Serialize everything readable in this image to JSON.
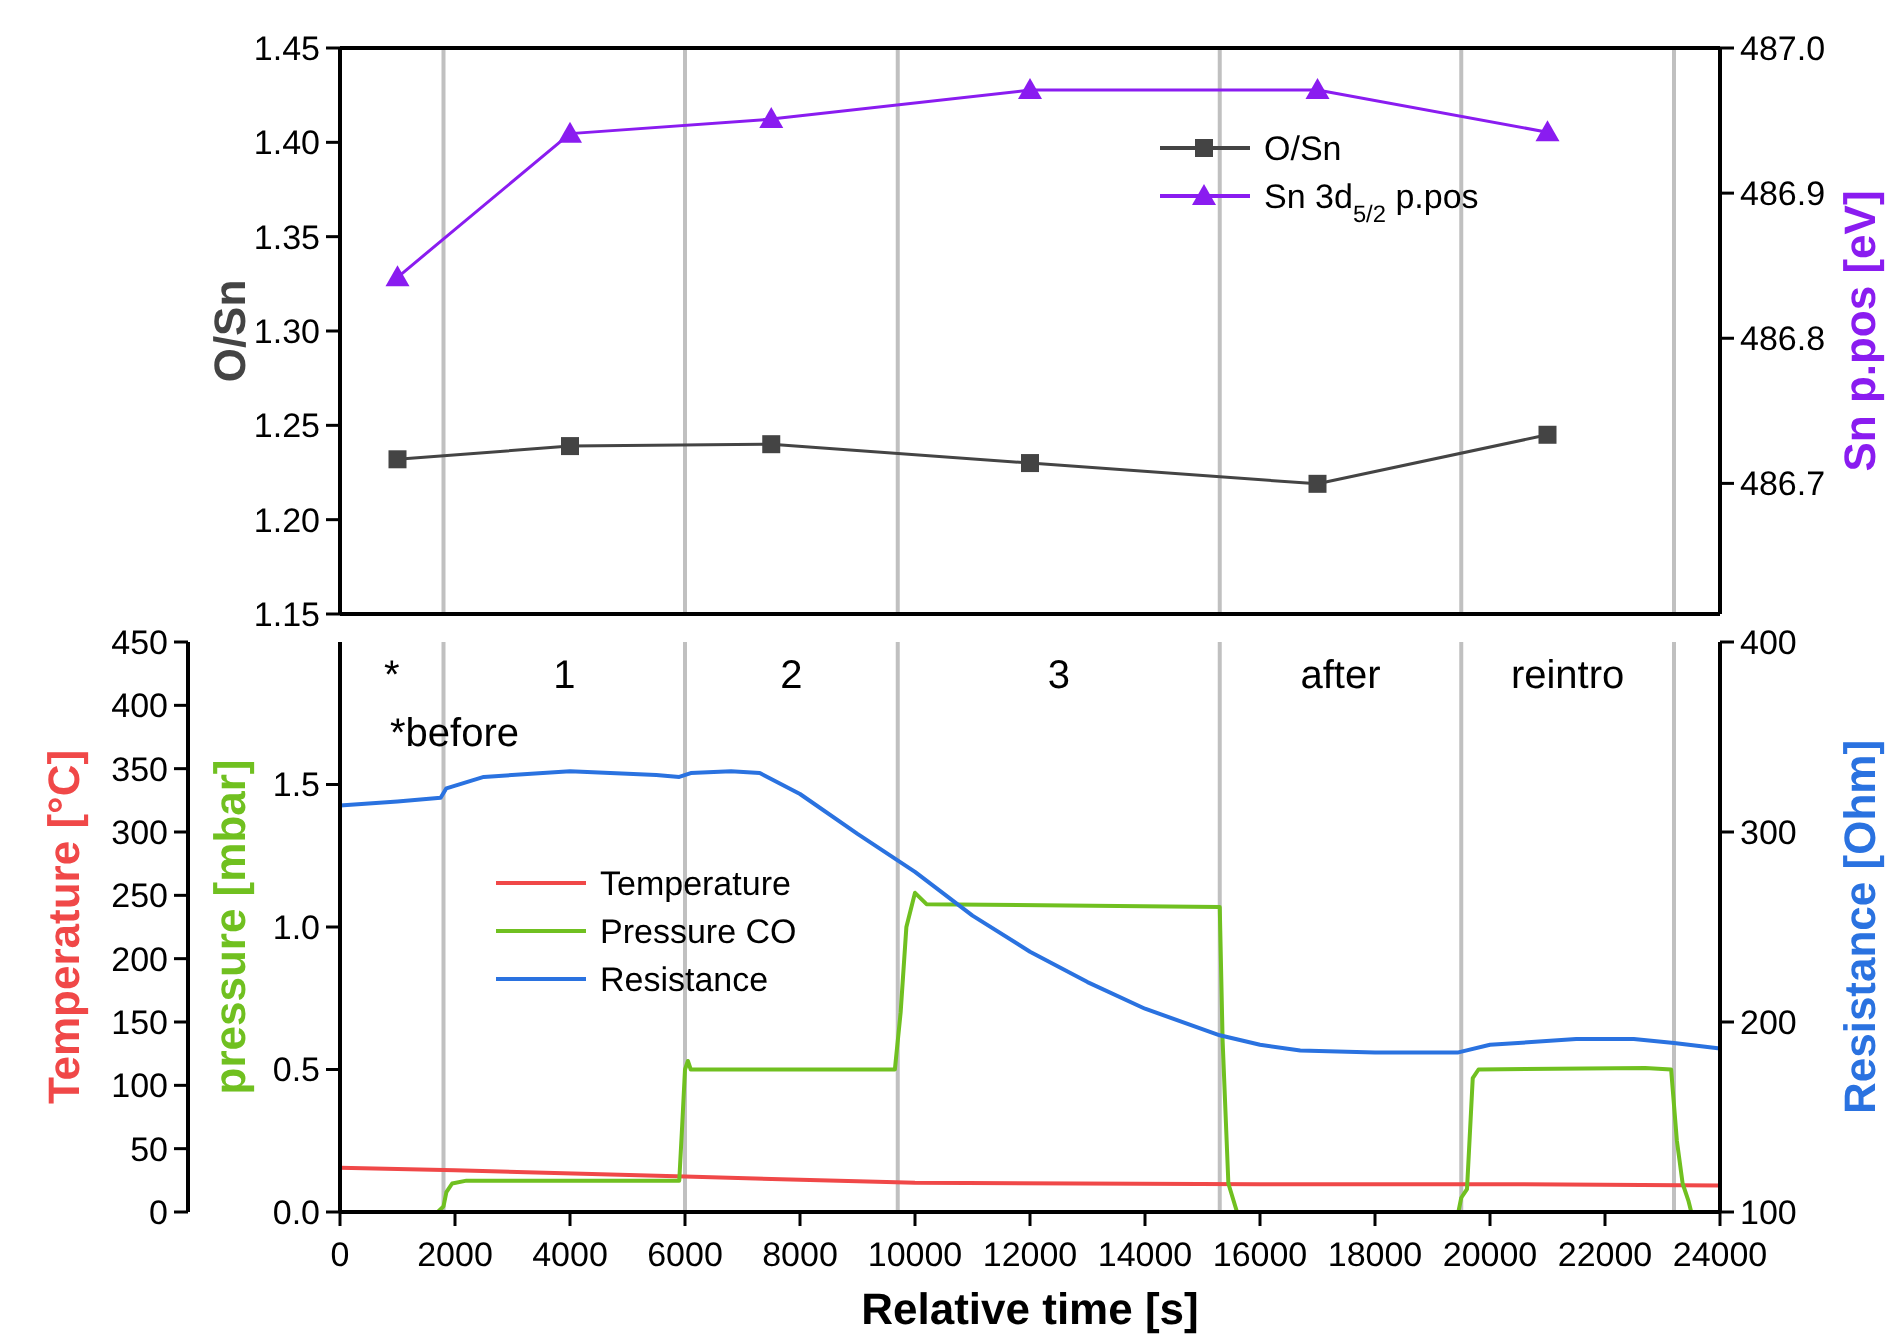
{
  "chart_data": [
    {
      "type": "line",
      "xlim": [
        0,
        24000
      ],
      "tick_labels": "y",
      "ylabel": "O/Sn",
      "y2label": "Sn p.pos [eV]",
      "ylim": [
        1.15,
        1.45
      ],
      "yticks": [
        {
          "value": 1.15,
          "label": "1.15"
        },
        {
          "value": 1.2,
          "label": "1.20"
        },
        {
          "value": 1.25,
          "label": "1.25"
        },
        {
          "value": 1.3,
          "label": "1.30"
        },
        {
          "value": 1.35,
          "label": "1.35"
        },
        {
          "value": 1.4,
          "label": "1.40"
        },
        {
          "value": 1.45,
          "label": "1.45"
        }
      ],
      "y2lim": [
        486.61,
        487.0
      ],
      "y2ticks": [
        486.7,
        486.8,
        486.9,
        {
          "value": 487.0,
          "label": "487.0"
        }
      ],
      "legend": "top right",
      "grid": false,
      "ref_lines": [
        {
          "axis": "x",
          "value": 1800,
          "color": "#c0c0c0"
        },
        {
          "axis": "x",
          "value": 6000,
          "color": "#c0c0c0"
        },
        {
          "axis": "x",
          "value": 9700,
          "color": "#c0c0c0"
        },
        {
          "axis": "x",
          "value": 15300,
          "color": "#c0c0c0"
        },
        {
          "axis": "x",
          "value": 19500,
          "color": "#c0c0c0"
        },
        {
          "axis": "x",
          "value": 23200,
          "color": "#c0c0c0"
        }
      ],
      "series": [
        {
          "name": "O/Sn",
          "color": "#444444",
          "marker": "square",
          "x": [
            1000,
            4000,
            7500,
            12000,
            17000,
            21000
          ],
          "values": [
            1.232,
            1.239,
            1.24,
            1.23,
            1.219,
            1.245
          ]
        },
        {
          "name": "Sn 3d$_{5/2}$ p.pos",
          "color": "#8a1cf0",
          "marker": "triangle",
          "axis": "y2",
          "x": [
            1000,
            4000,
            7500,
            12000,
            17000,
            21000
          ],
          "values": [
            486.842,
            486.941,
            486.951,
            486.971,
            486.971,
            486.942
          ]
        }
      ]
    },
    {
      "type": "line",
      "xlabel": "Relative time [s]",
      "xlim": [
        0,
        24000
      ],
      "xticks": [
        0,
        2000,
        4000,
        6000,
        8000,
        10000,
        12000,
        14000,
        16000,
        18000,
        20000,
        22000,
        24000
      ],
      "ylabel": "Temperature [°C]",
      "ylim": [
        0,
        450
      ],
      "yticks": [
        0,
        50,
        100,
        150,
        200,
        250,
        300,
        350,
        400,
        450
      ],
      "y2label": "pressure [mbar]",
      "y2lim": [
        0,
        2.0
      ],
      "y2ticks": [
        {
          "value": 0,
          "label": "0.0"
        },
        {
          "value": 0.5,
          "label": "0.5"
        },
        {
          "value": 1.0,
          "label": "1.0"
        },
        {
          "value": 1.5,
          "label": "1.5"
        }
      ],
      "y3label": "Resistance [Ohm]",
      "y3lim": [
        100,
        400
      ],
      "y3ticks": [
        100,
        200,
        300,
        400
      ],
      "legend": "left",
      "grid": false,
      "marker": "none",
      "ref_lines": [
        {
          "axis": "x",
          "value": 1800,
          "color": "#c0c0c0"
        },
        {
          "axis": "x",
          "value": 6000,
          "color": "#c0c0c0"
        },
        {
          "axis": "x",
          "value": 9700,
          "color": "#c0c0c0"
        },
        {
          "axis": "x",
          "value": 15300,
          "color": "#c0c0c0"
        },
        {
          "axis": "x",
          "value": 19500,
          "color": "#c0c0c0"
        },
        {
          "axis": "x",
          "value": 23200,
          "color": "#c0c0c0"
        }
      ],
      "annotations": [
        "*",
        "1",
        "2",
        "3",
        "after",
        "reintro",
        "*before"
      ],
      "series": [
        {
          "name": "Temperature",
          "color": "#f04848",
          "x": [
            0,
            2000,
            6000,
            10000,
            16000,
            20000,
            24000
          ],
          "values": [
            35,
            33,
            28,
            23,
            22,
            22,
            21
          ]
        },
        {
          "name": "Pressure CO",
          "color": "#70c020",
          "axis": "y2",
          "x": [
            0,
            1700,
            1800,
            1850,
            1950,
            2200,
            5900,
            5950,
            6000,
            6050,
            6100,
            9650,
            9750,
            9850,
            10000,
            10200,
            15300,
            15350,
            15450,
            15600,
            19450,
            19500,
            19600,
            19700,
            19800,
            22700,
            23150,
            23250,
            23350,
            23450,
            23500,
            24000
          ],
          "values": [
            0,
            0,
            0.02,
            0.07,
            0.1,
            0.11,
            0.11,
            0.3,
            0.5,
            0.53,
            0.5,
            0.5,
            0.7,
            1.0,
            1.12,
            1.08,
            1.07,
            0.6,
            0.1,
            0,
            0,
            0.05,
            0.08,
            0.47,
            0.5,
            0.505,
            0.5,
            0.25,
            0.1,
            0.04,
            0,
            0
          ]
        },
        {
          "name": "Resistance",
          "color": "#2a72e0",
          "axis": "y3",
          "x": [
            0,
            1000,
            1750,
            1850,
            2500,
            4000,
            5500,
            5900,
            6100,
            6800,
            7300,
            8000,
            9000,
            10000,
            11000,
            12000,
            13000,
            14000,
            15300,
            16000,
            16700,
            18000,
            19450,
            20000,
            21500,
            22500,
            23200,
            24000
          ],
          "values": [
            314,
            316,
            318,
            323,
            329,
            332,
            330,
            329,
            331,
            332,
            331,
            320,
            299,
            279,
            256,
            237,
            221,
            207,
            193,
            188,
            185,
            184,
            184,
            188,
            191,
            191,
            189,
            186
          ]
        }
      ]
    }
  ]
}
